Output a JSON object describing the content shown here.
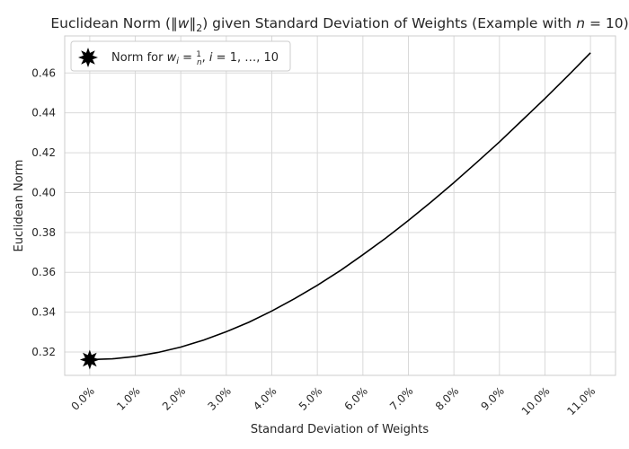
{
  "chart_data": {
    "type": "line",
    "title": "Euclidean Norm (‖w‖₂) given Standard Deviation of Weights (Example with n = 10)",
    "xlabel": "Standard Deviation of Weights",
    "ylabel": "Euclidean Norm",
    "xlim": [
      -0.0055,
      0.1155
    ],
    "ylim": [
      0.3083,
      0.4786
    ],
    "x_ticks": [
      0.0,
      0.01,
      0.02,
      0.03,
      0.04,
      0.05,
      0.06,
      0.07,
      0.08,
      0.09,
      0.1,
      0.11
    ],
    "x_tick_labels": [
      "0.0%",
      "1.0%",
      "2.0%",
      "3.0%",
      "4.0%",
      "5.0%",
      "6.0%",
      "7.0%",
      "8.0%",
      "9.0%",
      "10.0%",
      "11.0%"
    ],
    "y_ticks": [
      0.32,
      0.34,
      0.36,
      0.38,
      0.4,
      0.42,
      0.44,
      0.46
    ],
    "y_tick_labels": [
      "0.32",
      "0.34",
      "0.36",
      "0.38",
      "0.40",
      "0.42",
      "0.44",
      "0.46"
    ],
    "grid": true,
    "legend_position": "top-left",
    "series": [
      {
        "kind": "line",
        "color": "#000000",
        "x": [
          0.0,
          0.005,
          0.01,
          0.015,
          0.02,
          0.025,
          0.03,
          0.035,
          0.04,
          0.045,
          0.05,
          0.055,
          0.06,
          0.065,
          0.07,
          0.075,
          0.08,
          0.085,
          0.09,
          0.095,
          0.1,
          0.105,
          0.11
        ],
        "y": [
          0.3162,
          0.3166,
          0.3178,
          0.3198,
          0.3225,
          0.326,
          0.3302,
          0.335,
          0.3406,
          0.3468,
          0.3535,
          0.3608,
          0.3688,
          0.3771,
          0.386,
          0.3953,
          0.405,
          0.4151,
          0.4254,
          0.4363,
          0.4472,
          0.4585,
          0.4701
        ]
      },
      {
        "kind": "scatter",
        "name": "Norm for w_i = 1/n,   i = 1, …, 10",
        "color": "#000000",
        "marker": "star",
        "x": [
          0.0
        ],
        "y": [
          0.3162
        ]
      }
    ]
  }
}
